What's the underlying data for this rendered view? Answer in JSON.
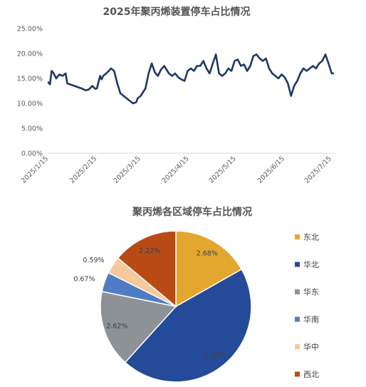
{
  "chart_data": [
    {
      "type": "line",
      "title": "2025年聚丙烯装置停车占比情况",
      "y_tick_labels": [
        "0.00%",
        "5.00%",
        "10.00%",
        "15.00%",
        "20.00%",
        "25.00%"
      ],
      "ylim": [
        0,
        25
      ],
      "x_tick_labels": [
        "2025/1/15",
        "2025/2/15",
        "2025/3/15",
        "2025/4/15",
        "2025/5/15",
        "2025/6/15",
        "2025/7/15"
      ],
      "grid": false,
      "color": "#1f3864",
      "series": [
        {
          "x": [
            "2025-01-15",
            "2025-01-16",
            "2025-01-17",
            "2025-01-18",
            "2025-01-20",
            "2025-01-22",
            "2025-01-24",
            "2025-01-26",
            "2025-01-27",
            "2025-02-05",
            "2025-02-08",
            "2025-02-10",
            "2025-02-12",
            "2025-02-14",
            "2025-02-15",
            "2025-02-17",
            "2025-02-18",
            "2025-02-19",
            "2025-02-21",
            "2025-02-24",
            "2025-02-26",
            "2025-02-28",
            "2025-03-02",
            "2025-03-04",
            "2025-03-06",
            "2025-03-08",
            "2025-03-10",
            "2025-03-12",
            "2025-03-13",
            "2025-03-15",
            "2025-03-18",
            "2025-03-20",
            "2025-03-22",
            "2025-03-24",
            "2025-03-26",
            "2025-03-28",
            "2025-03-30",
            "2025-04-02",
            "2025-04-04",
            "2025-04-06",
            "2025-04-08",
            "2025-04-10",
            "2025-04-12",
            "2025-04-14",
            "2025-04-16",
            "2025-04-18",
            "2025-04-20",
            "2025-04-22",
            "2025-04-24",
            "2025-04-26",
            "2025-04-28",
            "2025-04-30",
            "2025-05-02",
            "2025-05-04",
            "2025-05-06",
            "2025-05-08",
            "2025-05-10",
            "2025-05-12",
            "2025-05-14",
            "2025-05-16",
            "2025-05-18",
            "2025-05-20",
            "2025-05-22",
            "2025-05-24",
            "2025-05-26",
            "2025-05-28",
            "2025-05-30",
            "2025-06-01",
            "2025-06-03",
            "2025-06-05",
            "2025-06-07",
            "2025-06-09",
            "2025-06-11",
            "2025-06-13",
            "2025-06-15",
            "2025-06-17",
            "2025-06-19",
            "2025-06-21",
            "2025-06-23",
            "2025-06-25",
            "2025-06-27",
            "2025-06-29",
            "2025-07-01",
            "2025-07-03",
            "2025-07-05",
            "2025-07-07",
            "2025-07-09",
            "2025-07-11",
            "2025-07-13",
            "2025-07-15",
            "2025-07-16"
          ],
          "values": [
            14.2,
            13.8,
            16.5,
            16.2,
            15.0,
            15.8,
            15.5,
            16.0,
            14.0,
            13.0,
            12.6,
            12.8,
            13.5,
            12.9,
            13.0,
            15.5,
            14.8,
            15.5,
            16.0,
            17.0,
            16.5,
            14.0,
            12.0,
            11.5,
            11.0,
            10.5,
            10.0,
            10.2,
            11.0,
            11.5,
            13.0,
            16.0,
            18.0,
            16.2,
            15.5,
            16.8,
            17.5,
            16.0,
            15.5,
            16.0,
            15.2,
            14.8,
            14.5,
            16.5,
            17.0,
            16.5,
            17.5,
            17.5,
            18.5,
            17.0,
            16.0,
            18.0,
            19.8,
            16.0,
            15.5,
            16.0,
            17.0,
            16.5,
            18.5,
            18.8,
            17.5,
            17.8,
            16.5,
            17.5,
            19.5,
            19.8,
            19.0,
            18.5,
            19.0,
            17.0,
            16.0,
            15.5,
            15.0,
            15.8,
            15.2,
            14.0,
            11.5,
            13.5,
            14.5,
            16.0,
            17.0,
            16.5,
            17.0,
            17.5,
            17.0,
            18.0,
            18.5,
            19.8,
            18.0,
            16.0,
            16.0
          ]
        }
      ]
    },
    {
      "type": "pie",
      "title": "聚丙烯各区域停车占比情况",
      "legend_position": "right",
      "slices": [
        {
          "name": "东北",
          "value": 2.68,
          "label": "2.68%",
          "color": "#e3a72f"
        },
        {
          "name": "华北",
          "value": 7.16,
          "label": "7.16%",
          "color": "#264a9a"
        },
        {
          "name": "华东",
          "value": 2.62,
          "label": "2.62%",
          "color": "#8d9296"
        },
        {
          "name": "华南",
          "value": 0.67,
          "label": "0.67%",
          "color": "#4f7cc5"
        },
        {
          "name": "华中",
          "value": 0.59,
          "label": "0.59%",
          "color": "#f5c99a"
        },
        {
          "name": "西北",
          "value": 2.22,
          "label": "2.22%",
          "color": "#b84a14"
        }
      ]
    }
  ]
}
